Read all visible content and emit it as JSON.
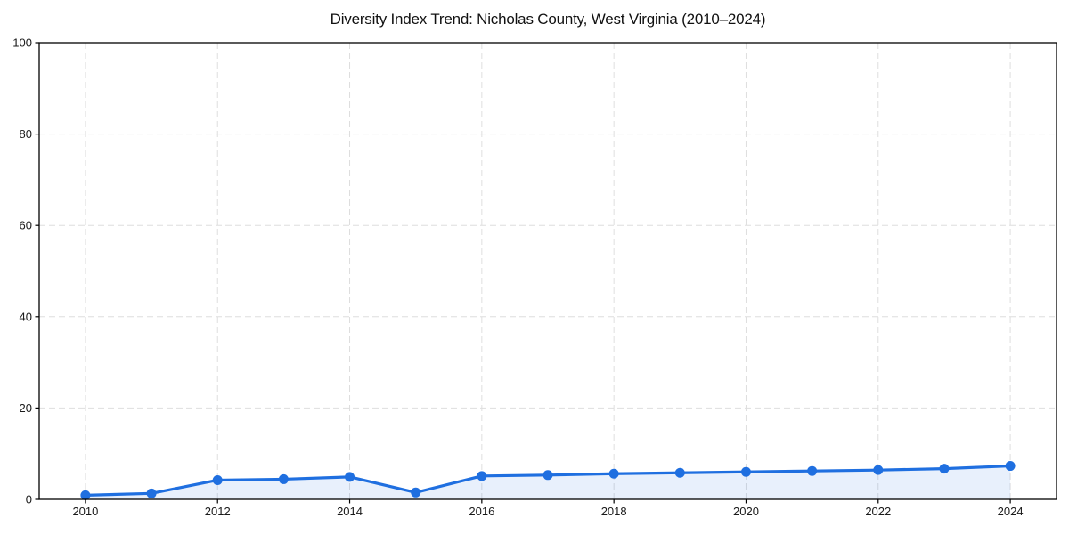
{
  "page": {
    "background": "#ffffff"
  },
  "chart_data": {
    "type": "line",
    "title": "Diversity Index Trend: Nicholas County, West Virginia (2010–2024)",
    "xlabel": "",
    "ylabel": "",
    "x": [
      2010,
      2011,
      2012,
      2013,
      2014,
      2015,
      2016,
      2017,
      2018,
      2019,
      2020,
      2021,
      2022,
      2023,
      2024
    ],
    "values": [
      0.9,
      1.3,
      4.2,
      4.4,
      4.9,
      1.5,
      5.1,
      5.3,
      5.6,
      5.8,
      6.0,
      6.2,
      6.4,
      6.7,
      7.3
    ],
    "series_name": "Diversity Index",
    "xlim": [
      2009.3,
      2024.7
    ],
    "ylim": [
      0,
      100
    ],
    "xticks": [
      2010,
      2012,
      2014,
      2016,
      2018,
      2020,
      2022,
      2024
    ],
    "yticks": [
      0,
      20,
      40,
      60,
      80,
      100
    ],
    "grid": true,
    "grid_style": "dashed",
    "legend": false,
    "marker": "circle",
    "style": {
      "line_color": "#1f6fe0",
      "marker_color": "#1f6fe0",
      "area_fill": "rgba(31, 111, 224, 0.10)",
      "grid_color": "#dedede",
      "axis_color": "#000000",
      "tick_label_color": "#1a1a1a",
      "title_color": "#111111",
      "background": "#ffffff"
    }
  }
}
